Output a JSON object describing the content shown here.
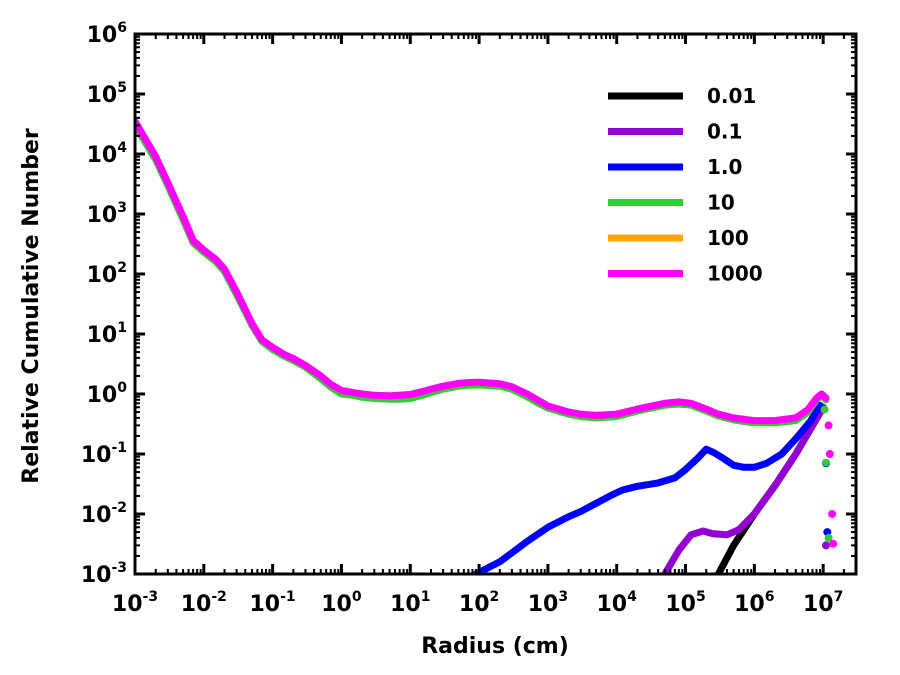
{
  "chart_data": {
    "type": "line",
    "xscale": "log",
    "yscale": "log",
    "xlabel": "Radius (cm)",
    "ylabel": "Relative Cumulative Number",
    "xlim": [
      0.001,
      30000000
    ],
    "ylim": [
      0.001,
      1000000
    ],
    "x_ticks": [
      {
        "base": "10",
        "exp": "-3",
        "value": 0.001
      },
      {
        "base": "10",
        "exp": "-2",
        "value": 0.01
      },
      {
        "base": "10",
        "exp": "-1",
        "value": 0.1
      },
      {
        "base": "10",
        "exp": "0",
        "value": 1
      },
      {
        "base": "10",
        "exp": "1",
        "value": 10
      },
      {
        "base": "10",
        "exp": "2",
        "value": 100
      },
      {
        "base": "10",
        "exp": "3",
        "value": 1000
      },
      {
        "base": "10",
        "exp": "4",
        "value": 10000
      },
      {
        "base": "10",
        "exp": "5",
        "value": 100000
      },
      {
        "base": "10",
        "exp": "6",
        "value": 1000000
      },
      {
        "base": "10",
        "exp": "7",
        "value": 10000000
      }
    ],
    "y_ticks": [
      {
        "base": "10",
        "exp": "-3",
        "value": 0.001
      },
      {
        "base": "10",
        "exp": "-2",
        "value": 0.01
      },
      {
        "base": "10",
        "exp": "-1",
        "value": 0.1
      },
      {
        "base": "10",
        "exp": "0",
        "value": 1
      },
      {
        "base": "10",
        "exp": "1",
        "value": 10
      },
      {
        "base": "10",
        "exp": "2",
        "value": 100
      },
      {
        "base": "10",
        "exp": "3",
        "value": 1000
      },
      {
        "base": "10",
        "exp": "4",
        "value": 10000
      },
      {
        "base": "10",
        "exp": "5",
        "value": 100000
      },
      {
        "base": "10",
        "exp": "6",
        "value": 1000000
      }
    ],
    "legend_position": "top-right",
    "series": [
      {
        "name": "0.01",
        "color": "#000000",
        "points": [
          [
            300000,
            0.001
          ],
          [
            500000,
            0.003
          ],
          [
            1000000,
            0.01
          ],
          [
            2000000,
            0.03
          ],
          [
            4000000,
            0.1
          ],
          [
            10000000,
            0.6
          ]
        ],
        "dots": []
      },
      {
        "name": "0.1",
        "color": "#9400d3",
        "points": [
          [
            50000,
            0.001
          ],
          [
            80000,
            0.0025
          ],
          [
            120000,
            0.0045
          ],
          [
            180000,
            0.0052
          ],
          [
            250000,
            0.0047
          ],
          [
            400000,
            0.0045
          ],
          [
            600000,
            0.0055
          ],
          [
            1000000,
            0.01
          ],
          [
            2000000,
            0.03
          ],
          [
            4000000,
            0.1
          ],
          [
            10000000,
            0.6
          ]
        ],
        "dots": [
          [
            11000000,
            0.003
          ]
        ]
      },
      {
        "name": "1.0",
        "color": "#0000ff",
        "points": [
          [
            90,
            0.001
          ],
          [
            200,
            0.0016
          ],
          [
            500,
            0.0035
          ],
          [
            1000,
            0.006
          ],
          [
            2000,
            0.009
          ],
          [
            3000,
            0.011
          ],
          [
            5000,
            0.015
          ],
          [
            8000,
            0.02
          ],
          [
            12000,
            0.025
          ],
          [
            20000,
            0.029
          ],
          [
            40000,
            0.033
          ],
          [
            70000,
            0.04
          ],
          [
            100000,
            0.055
          ],
          [
            150000,
            0.085
          ],
          [
            200000,
            0.12
          ],
          [
            260000,
            0.105
          ],
          [
            350000,
            0.085
          ],
          [
            500000,
            0.065
          ],
          [
            700000,
            0.06
          ],
          [
            1000000,
            0.06
          ],
          [
            1500000,
            0.07
          ],
          [
            2500000,
            0.1
          ],
          [
            4000000,
            0.18
          ],
          [
            6500000,
            0.35
          ],
          [
            9000000,
            0.65
          ]
        ],
        "dots": [
          [
            11000000,
            0.07
          ],
          [
            11500000,
            0.005
          ]
        ]
      },
      {
        "name": "10",
        "color": "#32cd32",
        "points": [
          [
            0.001,
            30000
          ],
          [
            0.002,
            8000
          ],
          [
            0.003,
            3000
          ],
          [
            0.005,
            800
          ],
          [
            0.007,
            330
          ],
          [
            0.01,
            230
          ],
          [
            0.015,
            160
          ],
          [
            0.02,
            110
          ],
          [
            0.03,
            45
          ],
          [
            0.05,
            14
          ],
          [
            0.07,
            7.5
          ],
          [
            0.1,
            5.5
          ],
          [
            0.15,
            4.2
          ],
          [
            0.2,
            3.6
          ],
          [
            0.3,
            2.8
          ],
          [
            0.5,
            1.8
          ],
          [
            0.7,
            1.3
          ],
          [
            1,
            1.0
          ],
          [
            1.5,
            0.95
          ],
          [
            2,
            0.88
          ],
          [
            3,
            0.84
          ],
          [
            5,
            0.82
          ],
          [
            7,
            0.82
          ],
          [
            10,
            0.84
          ],
          [
            15,
            0.95
          ],
          [
            20,
            1.05
          ],
          [
            30,
            1.2
          ],
          [
            50,
            1.35
          ],
          [
            70,
            1.4
          ],
          [
            100,
            1.42
          ],
          [
            200,
            1.35
          ],
          [
            300,
            1.2
          ],
          [
            500,
            0.9
          ],
          [
            700,
            0.72
          ],
          [
            1000,
            0.58
          ],
          [
            2000,
            0.46
          ],
          [
            3000,
            0.42
          ],
          [
            5000,
            0.4
          ],
          [
            10000,
            0.42
          ],
          [
            20000,
            0.52
          ],
          [
            50000,
            0.65
          ],
          [
            80000,
            0.68
          ],
          [
            120000,
            0.65
          ],
          [
            200000,
            0.52
          ],
          [
            300000,
            0.43
          ],
          [
            500000,
            0.37
          ],
          [
            800000,
            0.34
          ],
          [
            1000000,
            0.33
          ],
          [
            2000000,
            0.33
          ],
          [
            4000000,
            0.36
          ],
          [
            6000000,
            0.5
          ],
          [
            8000000,
            0.8
          ],
          [
            9500000,
            0.95
          ],
          [
            11000000,
            0.8
          ]
        ],
        "dots": [
          [
            10500000,
            0.55
          ],
          [
            11000000,
            0.072
          ],
          [
            12000000,
            0.004
          ]
        ]
      },
      {
        "name": "100",
        "color": "#ffa500",
        "points": [
          [
            0.001,
            35000
          ],
          [
            0.002,
            9000
          ],
          [
            0.003,
            3300
          ],
          [
            0.005,
            900
          ],
          [
            0.007,
            360
          ],
          [
            0.01,
            250
          ],
          [
            0.015,
            175
          ],
          [
            0.02,
            120
          ],
          [
            0.03,
            50
          ],
          [
            0.05,
            15
          ],
          [
            0.07,
            8
          ],
          [
            0.1,
            6
          ],
          [
            0.15,
            4.5
          ],
          [
            0.2,
            3.9
          ],
          [
            0.3,
            3
          ],
          [
            0.5,
            2
          ],
          [
            0.7,
            1.45
          ],
          [
            1,
            1.15
          ],
          [
            1.5,
            1.05
          ],
          [
            2,
            1.0
          ],
          [
            3,
            0.95
          ],
          [
            5,
            0.93
          ],
          [
            7,
            0.95
          ],
          [
            10,
            0.98
          ],
          [
            15,
            1.1
          ],
          [
            20,
            1.2
          ],
          [
            30,
            1.35
          ],
          [
            50,
            1.5
          ],
          [
            70,
            1.55
          ],
          [
            100,
            1.57
          ],
          [
            200,
            1.48
          ],
          [
            300,
            1.32
          ],
          [
            500,
            1.0
          ],
          [
            700,
            0.8
          ],
          [
            1000,
            0.63
          ],
          [
            2000,
            0.5
          ],
          [
            3000,
            0.46
          ],
          [
            5000,
            0.44
          ],
          [
            10000,
            0.46
          ],
          [
            20000,
            0.56
          ],
          [
            50000,
            0.7
          ],
          [
            80000,
            0.74
          ],
          [
            120000,
            0.7
          ],
          [
            200000,
            0.56
          ],
          [
            300000,
            0.46
          ],
          [
            500000,
            0.4
          ],
          [
            800000,
            0.37
          ],
          [
            1000000,
            0.36
          ],
          [
            2000000,
            0.36
          ],
          [
            4000000,
            0.4
          ],
          [
            6000000,
            0.55
          ],
          [
            8000000,
            0.85
          ],
          [
            9500000,
            1.0
          ],
          [
            11000000,
            0.85
          ]
        ],
        "dots": []
      },
      {
        "name": "1000",
        "color": "#ff00ff",
        "points": [
          [
            0.001,
            35000
          ],
          [
            0.002,
            9000
          ],
          [
            0.003,
            3300
          ],
          [
            0.005,
            900
          ],
          [
            0.007,
            360
          ],
          [
            0.01,
            250
          ],
          [
            0.015,
            175
          ],
          [
            0.02,
            120
          ],
          [
            0.03,
            50
          ],
          [
            0.05,
            15
          ],
          [
            0.07,
            8
          ],
          [
            0.1,
            6
          ],
          [
            0.15,
            4.5
          ],
          [
            0.2,
            3.9
          ],
          [
            0.3,
            3
          ],
          [
            0.5,
            2
          ],
          [
            0.7,
            1.45
          ],
          [
            1,
            1.15
          ],
          [
            1.5,
            1.05
          ],
          [
            2,
            1.0
          ],
          [
            3,
            0.95
          ],
          [
            5,
            0.93
          ],
          [
            7,
            0.95
          ],
          [
            10,
            0.98
          ],
          [
            15,
            1.1
          ],
          [
            20,
            1.2
          ],
          [
            30,
            1.35
          ],
          [
            50,
            1.5
          ],
          [
            70,
            1.55
          ],
          [
            100,
            1.57
          ],
          [
            200,
            1.48
          ],
          [
            300,
            1.32
          ],
          [
            500,
            1.0
          ],
          [
            700,
            0.8
          ],
          [
            1000,
            0.63
          ],
          [
            2000,
            0.5
          ],
          [
            3000,
            0.46
          ],
          [
            5000,
            0.44
          ],
          [
            10000,
            0.46
          ],
          [
            20000,
            0.56
          ],
          [
            50000,
            0.7
          ],
          [
            80000,
            0.74
          ],
          [
            120000,
            0.7
          ],
          [
            200000,
            0.56
          ],
          [
            300000,
            0.46
          ],
          [
            500000,
            0.4
          ],
          [
            800000,
            0.37
          ],
          [
            1000000,
            0.36
          ],
          [
            2000000,
            0.36
          ],
          [
            4000000,
            0.4
          ],
          [
            6000000,
            0.55
          ],
          [
            8000000,
            0.85
          ],
          [
            9500000,
            1.0
          ],
          [
            11000000,
            0.85
          ]
        ],
        "dots": [
          [
            12000000,
            0.3
          ],
          [
            12500000,
            0.1
          ],
          [
            13500000,
            0.01
          ],
          [
            14000000,
            0.0032
          ]
        ]
      }
    ]
  }
}
